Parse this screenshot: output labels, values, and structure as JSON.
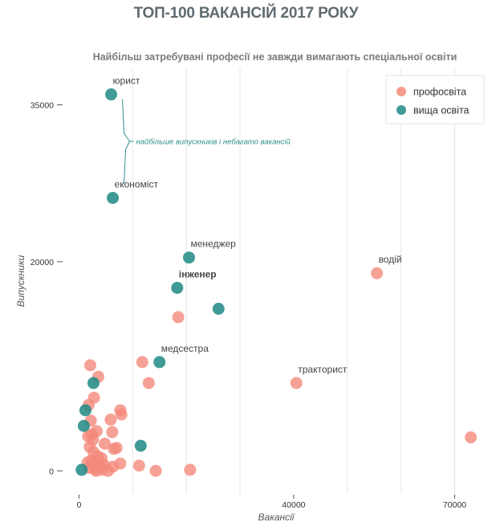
{
  "title": "ТОП-100 ВАКАНСІЙ 2017 РОКУ",
  "subtitle": "Найбільш затребувані професії не завжди вимагають спеціальної освіти",
  "colors": {
    "vocational": "#f4897a",
    "higher": "#1f8a85",
    "annotation": "#2a8f8a",
    "grid": "#e6e6e6"
  },
  "chart_data": {
    "type": "scatter",
    "xlabel": "Вакансії",
    "ylabel": "Випускники",
    "xlim": [
      -3500,
      76500
    ],
    "ylim": [
      -2200,
      38500
    ],
    "xticks": [
      0,
      40000,
      70000
    ],
    "yticks": [
      0,
      20000,
      35000
    ],
    "xtick_labels": [
      "0",
      "40000",
      "70000"
    ],
    "ytick_labels": [
      "0",
      "20000",
      "35000"
    ],
    "xgrid": [
      10000,
      20000,
      30000,
      50000,
      60000,
      70000
    ],
    "legend": {
      "position": "top-right",
      "entries": [
        "профосвіта",
        "вища освіта"
      ]
    },
    "annotation": {
      "text": "найбільше випускників і небагато вакансій",
      "targets": [
        "юрист",
        "економіст"
      ]
    },
    "series": [
      {
        "name": "профосвіта",
        "color": "#f4897a",
        "points": [
          {
            "x": 55500,
            "y": 18900,
            "label": "водій"
          },
          {
            "x": 40500,
            "y": 8400,
            "label": "тракторист"
          },
          {
            "x": 73000,
            "y": 3200
          },
          {
            "x": 18500,
            "y": 14700
          },
          {
            "x": 11800,
            "y": 10400
          },
          {
            "x": 13000,
            "y": 8400
          },
          {
            "x": 2100,
            "y": 10100
          },
          {
            "x": 3600,
            "y": 9000
          },
          {
            "x": 2800,
            "y": 7000
          },
          {
            "x": 1800,
            "y": 6300
          },
          {
            "x": 7700,
            "y": 5800
          },
          {
            "x": 7900,
            "y": 5400
          },
          {
            "x": 5900,
            "y": 4900
          },
          {
            "x": 2200,
            "y": 4800
          },
          {
            "x": 3300,
            "y": 3800
          },
          {
            "x": 6200,
            "y": 3700
          },
          {
            "x": 2400,
            "y": 3500
          },
          {
            "x": 1700,
            "y": 3300
          },
          {
            "x": 2600,
            "y": 3000
          },
          {
            "x": 4800,
            "y": 2600
          },
          {
            "x": 2000,
            "y": 2300
          },
          {
            "x": 7000,
            "y": 2200
          },
          {
            "x": 6500,
            "y": 2100
          },
          {
            "x": 2700,
            "y": 1800
          },
          {
            "x": 3500,
            "y": 1400
          },
          {
            "x": 4200,
            "y": 1200
          },
          {
            "x": 2300,
            "y": 1000
          },
          {
            "x": 1600,
            "y": 800
          },
          {
            "x": 3000,
            "y": 700
          },
          {
            "x": 7700,
            "y": 700
          },
          {
            "x": 4600,
            "y": 600
          },
          {
            "x": 3900,
            "y": 500
          },
          {
            "x": 6300,
            "y": 400
          },
          {
            "x": 11200,
            "y": 500
          },
          {
            "x": 1900,
            "y": 300
          },
          {
            "x": 2900,
            "y": 200
          },
          {
            "x": 4300,
            "y": 100
          },
          {
            "x": 14300,
            "y": 0
          },
          {
            "x": 20700,
            "y": 100
          },
          {
            "x": 3200,
            "y": 0
          },
          {
            "x": 5400,
            "y": 0
          }
        ]
      },
      {
        "name": "вища освіта",
        "color": "#1f8a85",
        "points": [
          {
            "x": 6000,
            "y": 36000,
            "label": "юрист"
          },
          {
            "x": 6300,
            "y": 26100,
            "label": "економіст"
          },
          {
            "x": 20500,
            "y": 20400,
            "label": "менеджер"
          },
          {
            "x": 18300,
            "y": 17500,
            "label": "інженер",
            "bold": true
          },
          {
            "x": 26000,
            "y": 15500
          },
          {
            "x": 15000,
            "y": 10400,
            "label": "медсестра"
          },
          {
            "x": 2700,
            "y": 8400
          },
          {
            "x": 1200,
            "y": 5800
          },
          {
            "x": 900,
            "y": 4300
          },
          {
            "x": 11500,
            "y": 2400
          },
          {
            "x": 500,
            "y": 100
          }
        ]
      }
    ]
  }
}
